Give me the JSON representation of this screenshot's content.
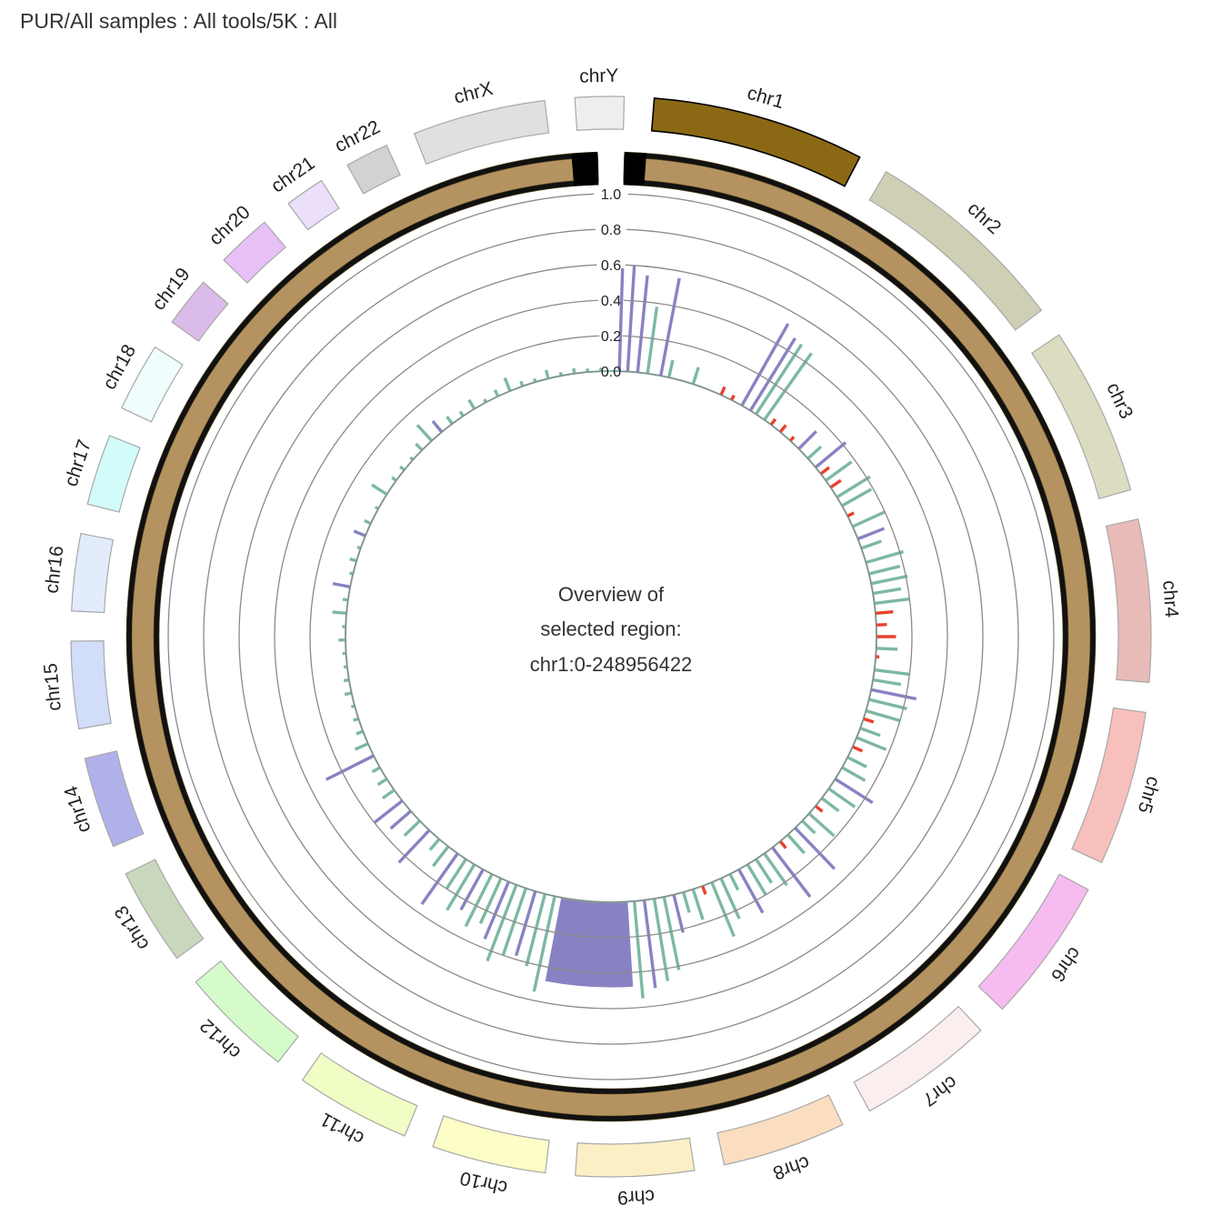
{
  "title": "PUR/All samples : All tools/5K : All",
  "center": {
    "line1": "Overview of",
    "line2": "selected region:",
    "line3": "chr1:0-248956422"
  },
  "chart_data": {
    "type": "circos",
    "title": "PUR/All samples : All tools/5K : All",
    "selected_region": "chr1:0-248956422",
    "chromosomes": [
      {
        "name": "chr1",
        "color": "#8b6914",
        "size": 248956422
      },
      {
        "name": "chr2",
        "color": "#cfcfb5",
        "size": 242193529
      },
      {
        "name": "chr3",
        "color": "#dcdcc0",
        "size": 198295559
      },
      {
        "name": "chr4",
        "color": "#e9bbb8",
        "size": 190214555
      },
      {
        "name": "chr5",
        "color": "#f8c0bc",
        "size": 181538259
      },
      {
        "name": "chr6",
        "color": "#f6bcf0",
        "size": 170805979
      },
      {
        "name": "chr7",
        "color": "#fbeeee",
        "size": 159345973
      },
      {
        "name": "chr8",
        "color": "#fadebf",
        "size": 145138636
      },
      {
        "name": "chr9",
        "color": "#fcefc6",
        "size": 138394717
      },
      {
        "name": "chr10",
        "color": "#fdfdc7",
        "size": 133797422
      },
      {
        "name": "chr11",
        "color": "#f0fdc5",
        "size": 135086622
      },
      {
        "name": "chr12",
        "color": "#d4fbc9",
        "size": 133275309
      },
      {
        "name": "chr13",
        "color": "#c9d7bc",
        "size": 114364328
      },
      {
        "name": "chr14",
        "color": "#b0b0ea",
        "size": 107043718
      },
      {
        "name": "chr15",
        "color": "#d2ddfa",
        "size": 101991189
      },
      {
        "name": "chr16",
        "color": "#e2ecfa",
        "size": 90338345
      },
      {
        "name": "chr17",
        "color": "#d2fcfa",
        "size": 83257441
      },
      {
        "name": "chr18",
        "color": "#effdfd",
        "size": 80373285
      },
      {
        "name": "chr19",
        "color": "#dbbbe9",
        "size": 58617616
      },
      {
        "name": "chr20",
        "color": "#e8c0f8",
        "size": 64444167
      },
      {
        "name": "chr21",
        "color": "#ebdffa",
        "size": 46709983
      },
      {
        "name": "chr22",
        "color": "#d2d2d2",
        "size": 50818468
      },
      {
        "name": "chrX",
        "color": "#e0e0e0",
        "size": 156040895
      },
      {
        "name": "chrY",
        "color": "#eeeeee",
        "size": 57227415
      }
    ],
    "radial_axis": {
      "ticks": [
        "0.0",
        "0.2",
        "0.4",
        "0.6",
        "0.8",
        "1.0"
      ],
      "tick_values": [
        0,
        0.2,
        0.4,
        0.6,
        0.8,
        1.0
      ],
      "range": [
        0,
        1.0
      ]
    },
    "series": [
      {
        "color": "#8882c3"
      },
      {
        "color": "#7db8a3"
      },
      {
        "color": "#e8412c"
      }
    ],
    "histogram": [
      {
        "pos": 0.005,
        "val": 0.58,
        "s": 0
      },
      {
        "pos": 0.01,
        "val": 0.6,
        "s": 0
      },
      {
        "pos": 0.016,
        "val": 0.55,
        "s": 0
      },
      {
        "pos": 0.022,
        "val": 0.38,
        "s": 1
      },
      {
        "pos": 0.03,
        "val": 0.56,
        "s": 0
      },
      {
        "pos": 0.035,
        "val": 0.1,
        "s": 1
      },
      {
        "pos": 0.05,
        "val": 0.1,
        "s": 1
      },
      {
        "pos": 0.068,
        "val": 0.05,
        "s": 2
      },
      {
        "pos": 0.075,
        "val": 0.03,
        "s": 2
      },
      {
        "pos": 0.082,
        "val": 0.53,
        "s": 0
      },
      {
        "pos": 0.088,
        "val": 0.48,
        "s": 0
      },
      {
        "pos": 0.092,
        "val": 0.47,
        "s": 1
      },
      {
        "pos": 0.098,
        "val": 0.46,
        "s": 1
      },
      {
        "pos": 0.103,
        "val": 0.04,
        "s": 2
      },
      {
        "pos": 0.11,
        "val": 0.05,
        "s": 2
      },
      {
        "pos": 0.118,
        "val": 0.03,
        "s": 2
      },
      {
        "pos": 0.125,
        "val": 0.14,
        "s": 0
      },
      {
        "pos": 0.133,
        "val": 0.1,
        "s": 1
      },
      {
        "pos": 0.14,
        "val": 0.22,
        "s": 0
      },
      {
        "pos": 0.145,
        "val": 0.06,
        "s": 2
      },
      {
        "pos": 0.15,
        "val": 0.18,
        "s": 1
      },
      {
        "pos": 0.155,
        "val": 0.07,
        "s": 2
      },
      {
        "pos": 0.162,
        "val": 0.22,
        "s": 1
      },
      {
        "pos": 0.168,
        "val": 0.19,
        "s": 1
      },
      {
        "pos": 0.175,
        "val": 0.04,
        "s": 2
      },
      {
        "pos": 0.182,
        "val": 0.2,
        "s": 1
      },
      {
        "pos": 0.19,
        "val": 0.16,
        "s": 0
      },
      {
        "pos": 0.196,
        "val": 0.12,
        "s": 1
      },
      {
        "pos": 0.205,
        "val": 0.22,
        "s": 1
      },
      {
        "pos": 0.212,
        "val": 0.18,
        "s": 1
      },
      {
        "pos": 0.218,
        "val": 0.21,
        "s": 1
      },
      {
        "pos": 0.224,
        "val": 0.16,
        "s": 1
      },
      {
        "pos": 0.23,
        "val": 0.2,
        "s": 1
      },
      {
        "pos": 0.236,
        "val": 0.1,
        "s": 2
      },
      {
        "pos": 0.243,
        "val": 0.06,
        "s": 2
      },
      {
        "pos": 0.25,
        "val": 0.11,
        "s": 2
      },
      {
        "pos": 0.257,
        "val": 0.12,
        "s": 1
      },
      {
        "pos": 0.262,
        "val": 0.02,
        "s": 2
      },
      {
        "pos": 0.27,
        "val": 0.2,
        "s": 1
      },
      {
        "pos": 0.276,
        "val": 0.16,
        "s": 1
      },
      {
        "pos": 0.282,
        "val": 0.26,
        "s": 0
      },
      {
        "pos": 0.288,
        "val": 0.22,
        "s": 1
      },
      {
        "pos": 0.295,
        "val": 0.2,
        "s": 1
      },
      {
        "pos": 0.3,
        "val": 0.06,
        "s": 2
      },
      {
        "pos": 0.306,
        "val": 0.12,
        "s": 1
      },
      {
        "pos": 0.312,
        "val": 0.18,
        "s": 1
      },
      {
        "pos": 0.318,
        "val": 0.06,
        "s": 2
      },
      {
        "pos": 0.325,
        "val": 0.12,
        "s": 1
      },
      {
        "pos": 0.332,
        "val": 0.15,
        "s": 1
      },
      {
        "pos": 0.34,
        "val": 0.25,
        "s": 0
      },
      {
        "pos": 0.347,
        "val": 0.18,
        "s": 1
      },
      {
        "pos": 0.354,
        "val": 0.12,
        "s": 1
      },
      {
        "pos": 0.36,
        "val": 0.05,
        "s": 2
      },
      {
        "pos": 0.366,
        "val": 0.19,
        "s": 1
      },
      {
        "pos": 0.372,
        "val": 0.1,
        "s": 1
      },
      {
        "pos": 0.378,
        "val": 0.32,
        "s": 0
      },
      {
        "pos": 0.384,
        "val": 0.14,
        "s": 1
      },
      {
        "pos": 0.39,
        "val": 0.05,
        "s": 2
      },
      {
        "pos": 0.396,
        "val": 0.35,
        "s": 0
      },
      {
        "pos": 0.402,
        "val": 0.22,
        "s": 1
      },
      {
        "pos": 0.408,
        "val": 0.16,
        "s": 1
      },
      {
        "pos": 0.414,
        "val": 0.2,
        "s": 1
      },
      {
        "pos": 0.42,
        "val": 0.28,
        "s": 0
      },
      {
        "pos": 0.426,
        "val": 0.1,
        "s": 1
      },
      {
        "pos": 0.432,
        "val": 0.25,
        "s": 1
      },
      {
        "pos": 0.438,
        "val": 0.33,
        "s": 1
      },
      {
        "pos": 0.444,
        "val": 0.05,
        "s": 2
      },
      {
        "pos": 0.45,
        "val": 0.18,
        "s": 1
      },
      {
        "pos": 0.456,
        "val": 0.12,
        "s": 1
      },
      {
        "pos": 0.462,
        "val": 0.22,
        "s": 0
      },
      {
        "pos": 0.468,
        "val": 0.42,
        "s": 1
      },
      {
        "pos": 0.474,
        "val": 0.47,
        "s": 1
      },
      {
        "pos": 0.48,
        "val": 0.5,
        "s": 0
      },
      {
        "pos": 0.486,
        "val": 0.55,
        "s": 1
      },
      {
        "pos": 0.534,
        "val": 0.55,
        "s": 1
      },
      {
        "pos": 0.54,
        "val": 0.42,
        "s": 1
      },
      {
        "pos": 0.546,
        "val": 0.38,
        "s": 0
      },
      {
        "pos": 0.552,
        "val": 0.4,
        "s": 1
      },
      {
        "pos": 0.558,
        "val": 0.46,
        "s": 1
      },
      {
        "pos": 0.563,
        "val": 0.35,
        "s": 0
      },
      {
        "pos": 0.568,
        "val": 0.28,
        "s": 1
      },
      {
        "pos": 0.574,
        "val": 0.33,
        "s": 1
      },
      {
        "pos": 0.58,
        "val": 0.26,
        "s": 0
      },
      {
        "pos": 0.586,
        "val": 0.3,
        "s": 1
      },
      {
        "pos": 0.592,
        "val": 0.2,
        "s": 1
      },
      {
        "pos": 0.598,
        "val": 0.35,
        "s": 0
      },
      {
        "pos": 0.605,
        "val": 0.14,
        "s": 1
      },
      {
        "pos": 0.612,
        "val": 0.08,
        "s": 1
      },
      {
        "pos": 0.62,
        "val": 0.25,
        "s": 0
      },
      {
        "pos": 0.628,
        "val": 0.12,
        "s": 1
      },
      {
        "pos": 0.636,
        "val": 0.15,
        "s": 0
      },
      {
        "pos": 0.644,
        "val": 0.2,
        "s": 0
      },
      {
        "pos": 0.652,
        "val": 0.08,
        "s": 1
      },
      {
        "pos": 0.66,
        "val": 0.06,
        "s": 1
      },
      {
        "pos": 0.668,
        "val": 0.05,
        "s": 1
      },
      {
        "pos": 0.676,
        "val": 0.3,
        "s": 0
      },
      {
        "pos": 0.684,
        "val": 0.08,
        "s": 1
      },
      {
        "pos": 0.692,
        "val": 0.04,
        "s": 1
      },
      {
        "pos": 0.7,
        "val": 0.03,
        "s": 1
      },
      {
        "pos": 0.708,
        "val": 0.02,
        "s": 1
      },
      {
        "pos": 0.716,
        "val": 0.04,
        "s": 1
      },
      {
        "pos": 0.724,
        "val": 0.03,
        "s": 1
      },
      {
        "pos": 0.732,
        "val": 0.02,
        "s": 1
      },
      {
        "pos": 0.74,
        "val": 0.02,
        "s": 1
      },
      {
        "pos": 0.748,
        "val": 0.04,
        "s": 1
      },
      {
        "pos": 0.756,
        "val": 0.02,
        "s": 1
      },
      {
        "pos": 0.764,
        "val": 0.08,
        "s": 1
      },
      {
        "pos": 0.772,
        "val": 0.03,
        "s": 1
      },
      {
        "pos": 0.78,
        "val": 0.1,
        "s": 0
      },
      {
        "pos": 0.788,
        "val": 0.02,
        "s": 1
      },
      {
        "pos": 0.796,
        "val": 0.04,
        "s": 1
      },
      {
        "pos": 0.804,
        "val": 0.02,
        "s": 1
      },
      {
        "pos": 0.812,
        "val": 0.07,
        "s": 0
      },
      {
        "pos": 0.82,
        "val": 0.04,
        "s": 1
      },
      {
        "pos": 0.83,
        "val": 0.02,
        "s": 1
      },
      {
        "pos": 0.84,
        "val": 0.1,
        "s": 1
      },
      {
        "pos": 0.85,
        "val": 0.03,
        "s": 1
      },
      {
        "pos": 0.858,
        "val": 0.03,
        "s": 1
      },
      {
        "pos": 0.866,
        "val": 0.02,
        "s": 1
      },
      {
        "pos": 0.874,
        "val": 0.05,
        "s": 1
      },
      {
        "pos": 0.882,
        "val": 0.12,
        "s": 1
      },
      {
        "pos": 0.89,
        "val": 0.08,
        "s": 0
      },
      {
        "pos": 0.898,
        "val": 0.05,
        "s": 1
      },
      {
        "pos": 0.906,
        "val": 0.03,
        "s": 1
      },
      {
        "pos": 0.914,
        "val": 0.06,
        "s": 1
      },
      {
        "pos": 0.922,
        "val": 0.02,
        "s": 1
      },
      {
        "pos": 0.93,
        "val": 0.04,
        "s": 1
      },
      {
        "pos": 0.938,
        "val": 0.08,
        "s": 1
      },
      {
        "pos": 0.946,
        "val": 0.03,
        "s": 1
      },
      {
        "pos": 0.954,
        "val": 0.02,
        "s": 1
      },
      {
        "pos": 0.962,
        "val": 0.05,
        "s": 1
      },
      {
        "pos": 0.97,
        "val": 0.02,
        "s": 1
      },
      {
        "pos": 0.978,
        "val": 0.03,
        "s": 1
      },
      {
        "pos": 0.986,
        "val": 0.02,
        "s": 1
      },
      {
        "pos": 0.994,
        "val": 0.02,
        "s": 1
      }
    ],
    "dense_region": {
      "from": 0.49,
      "to": 0.53,
      "val": 0.48,
      "s": 0
    }
  }
}
